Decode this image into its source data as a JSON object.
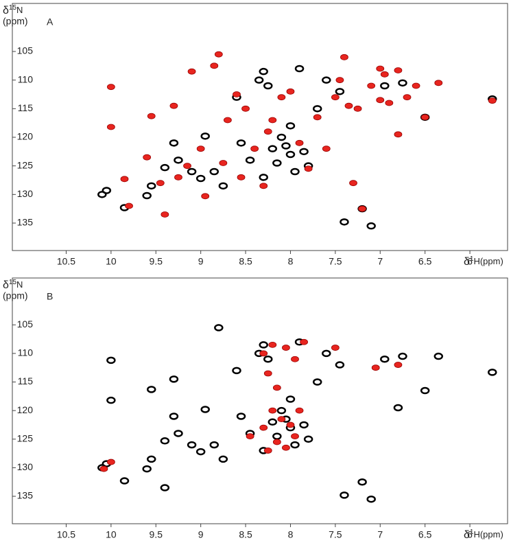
{
  "chart_data": [
    {
      "type": "scatter",
      "panel": "A",
      "y_label_parts": [
        "δ",
        "15",
        "N"
      ],
      "y_unit": "(ppm)",
      "x_label_parts": [
        "δ",
        "1",
        "H(ppm)"
      ],
      "xlim": [
        11.1,
        5.58
      ],
      "ylim": [
        96.6,
        139.8
      ],
      "xticks": [
        10.5,
        10.0,
        9.5,
        9.0,
        8.5,
        8.0,
        7.5,
        7.0,
        6.5,
        6.0
      ],
      "yticks": [
        105,
        110,
        115,
        120,
        125,
        130,
        135
      ],
      "series": [
        {
          "color": "#000000",
          "x": [
            10.05,
            10.1,
            9.85,
            9.6,
            9.55,
            9.4,
            9.25,
            9.1,
            9.0,
            8.95,
            8.85,
            8.75,
            8.55,
            8.45,
            8.35,
            8.3,
            8.25,
            8.2,
            8.15,
            8.1,
            8.05,
            8.0,
            7.95,
            7.9,
            7.85,
            7.8,
            7.6,
            7.45,
            7.4,
            7.2,
            7.1,
            6.95,
            6.75,
            6.5,
            5.75,
            8.0,
            8.3,
            8.6,
            9.3,
            7.7
          ],
          "values": [
            129.3,
            130,
            132.3,
            130.2,
            128.5,
            125.3,
            124,
            126,
            127.2,
            119.8,
            126,
            128.5,
            121,
            124,
            110,
            108.5,
            111,
            122,
            124.5,
            120,
            121.5,
            123,
            126,
            108,
            122.5,
            125,
            110,
            112,
            134.8,
            132.5,
            135.5,
            111,
            110.5,
            116.5,
            113.3,
            118,
            127,
            113,
            121,
            115
          ]
        },
        {
          "color": "#e8251f",
          "x": [
            10.0,
            10.0,
            9.85,
            9.8,
            9.55,
            9.4,
            9.3,
            9.25,
            9.1,
            9.0,
            8.95,
            8.85,
            8.8,
            8.7,
            8.6,
            8.5,
            8.4,
            8.3,
            8.25,
            8.2,
            8.1,
            8.0,
            7.9,
            7.8,
            7.7,
            7.6,
            7.5,
            7.45,
            7.4,
            7.35,
            7.3,
            7.1,
            7.0,
            6.95,
            6.9,
            6.8,
            6.8,
            6.6,
            6.5,
            6.35,
            5.75,
            9.6,
            9.45,
            9.15,
            8.75,
            8.55,
            7.2,
            7.25,
            6.7,
            7.0
          ],
          "values": [
            111.2,
            118.2,
            127.3,
            132,
            116.3,
            133.5,
            114.5,
            127,
            108.5,
            122,
            130.3,
            107.5,
            105.5,
            117,
            112.5,
            115,
            122,
            128.5,
            119,
            117,
            113,
            112,
            121,
            125.5,
            116.5,
            122,
            113,
            110,
            106,
            114.5,
            128,
            111,
            113.5,
            109,
            114,
            108.3,
            119.5,
            111,
            116.5,
            110.5,
            113.6,
            123.5,
            128,
            125,
            124.5,
            127,
            132.5,
            115,
            113,
            108
          ]
        }
      ]
    },
    {
      "type": "scatter",
      "panel": "B",
      "y_label_parts": [
        "δ",
        "15",
        "N"
      ],
      "y_unit": "(ppm)",
      "x_label_parts": [
        "δ",
        "1",
        "H(ppm)"
      ],
      "xlim": [
        11.1,
        5.58
      ],
      "ylim": [
        96.8,
        139.8
      ],
      "xticks": [
        10.5,
        10.0,
        9.5,
        9.0,
        8.5,
        8.0,
        7.5,
        7.0,
        6.5,
        6.0
      ],
      "yticks": [
        105,
        110,
        115,
        120,
        125,
        130,
        135
      ],
      "series": [
        {
          "color": "#000000",
          "x": [
            10.05,
            10.1,
            9.85,
            9.6,
            9.55,
            9.4,
            9.25,
            9.1,
            9.0,
            8.95,
            8.85,
            8.75,
            8.55,
            8.45,
            8.35,
            8.3,
            8.25,
            8.2,
            8.15,
            8.1,
            8.05,
            8.0,
            7.95,
            7.9,
            7.85,
            7.8,
            7.6,
            7.45,
            7.4,
            7.2,
            7.1,
            6.95,
            6.75,
            6.5,
            5.75,
            8.0,
            8.3,
            8.6,
            9.3,
            7.7,
            10.0,
            10.0,
            9.55,
            9.3,
            8.8,
            6.8,
            6.35,
            9.4
          ],
          "values": [
            129.3,
            130,
            132.3,
            130.2,
            128.5,
            125.3,
            124,
            126,
            127.2,
            119.8,
            126,
            128.5,
            121,
            124,
            110,
            108.5,
            111,
            122,
            124.5,
            120,
            121.5,
            123,
            126,
            108,
            122.5,
            125,
            110,
            112,
            134.8,
            132.5,
            135.5,
            111,
            110.5,
            116.5,
            113.3,
            118,
            127,
            113,
            121,
            115,
            111.2,
            118.2,
            116.3,
            114.5,
            105.5,
            119.5,
            110.5,
            133.5
          ]
        },
        {
          "color": "#e8251f",
          "x": [
            10.08,
            10.0,
            8.3,
            8.2,
            8.05,
            7.95,
            8.25,
            8.15,
            8.2,
            8.1,
            8.0,
            7.95,
            8.15,
            8.3,
            8.05,
            7.9,
            8.25,
            7.05,
            6.8,
            7.5,
            8.45,
            7.85
          ],
          "values": [
            130.2,
            129,
            110,
            108.5,
            109,
            111,
            113.5,
            116,
            120,
            121.5,
            122.5,
            124.5,
            125.5,
            123,
            126.5,
            120,
            127,
            112.5,
            112,
            109,
            124.5,
            108
          ]
        }
      ]
    }
  ]
}
